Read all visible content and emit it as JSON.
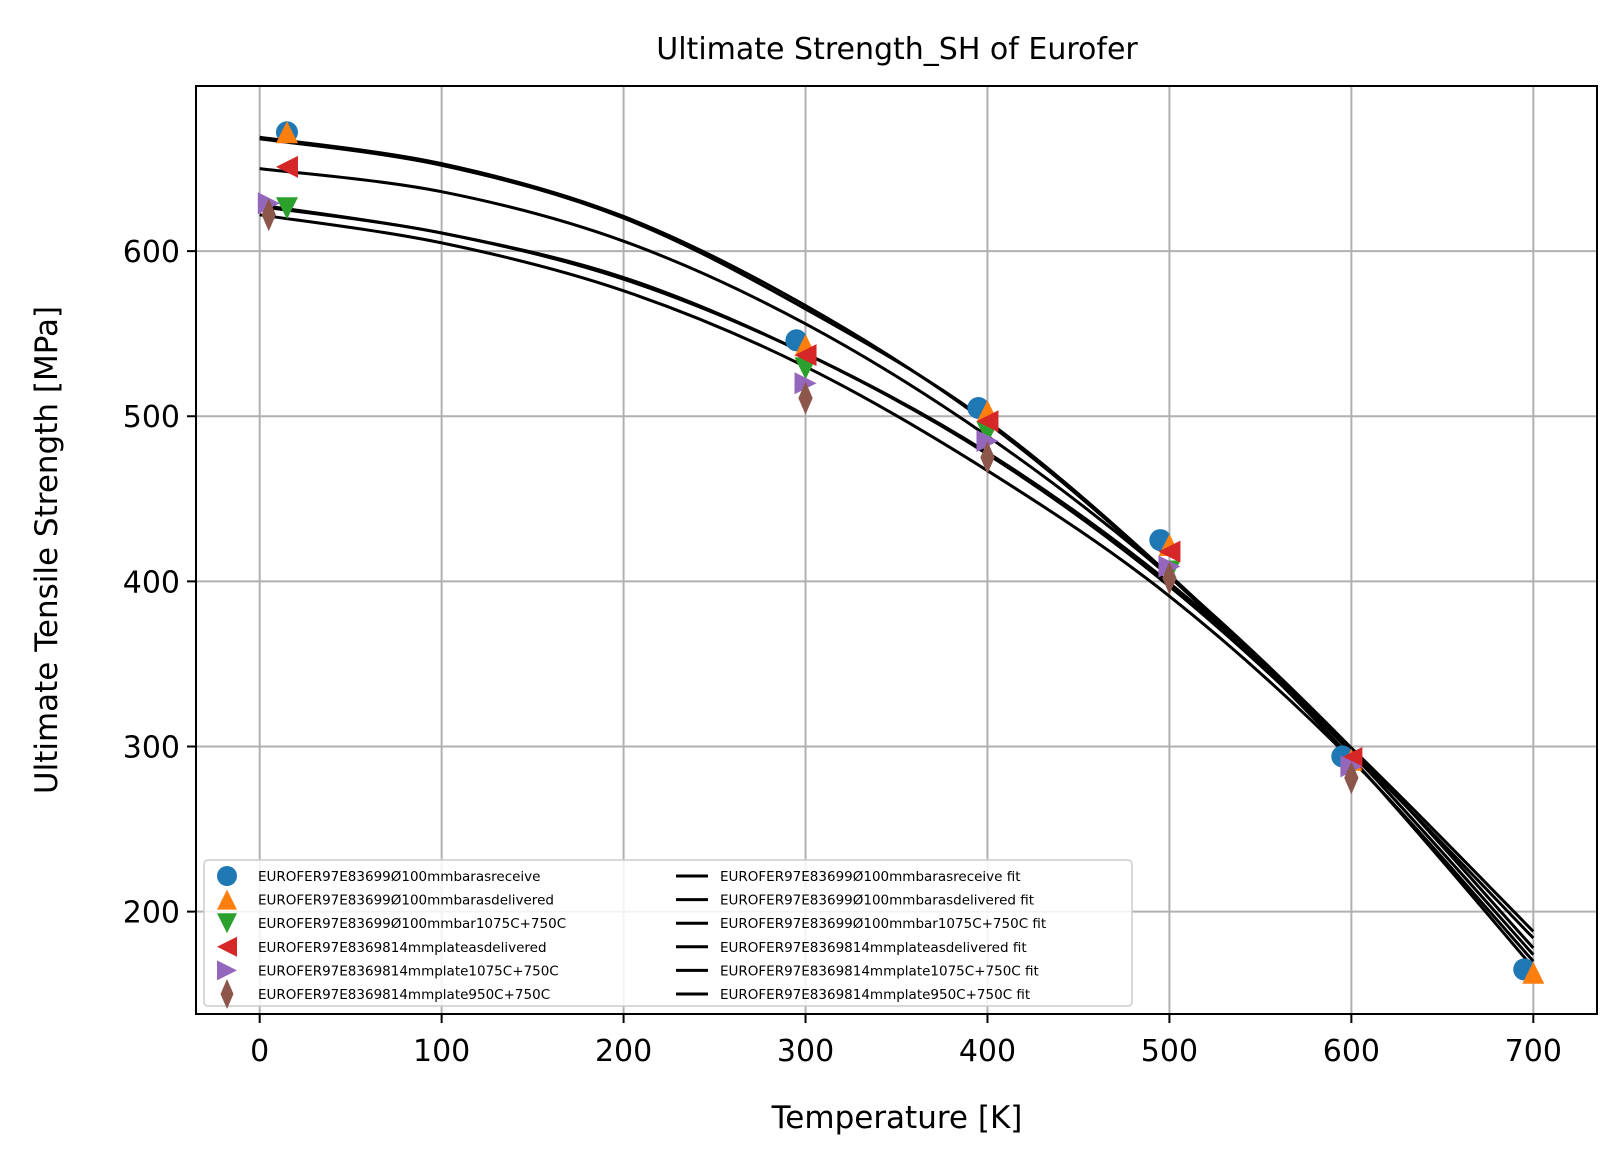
{
  "chart_data": {
    "type": "scatter",
    "title": "Ultimate Strength_SH of Eurofer",
    "xlabel": "Temperature [K]",
    "ylabel": "Ultimate Tensile Strength [MPa]",
    "xlim": [
      -35,
      735
    ],
    "ylim": [
      138,
      700
    ],
    "xticks": [
      0,
      100,
      200,
      300,
      400,
      500,
      600,
      700
    ],
    "yticks": [
      200,
      300,
      400,
      500,
      600
    ],
    "grid": true,
    "legend_position": "lower-left",
    "series": [
      {
        "name": "EUROFER97E83699Ø100mmbarasreceive",
        "marker": "circle",
        "color": "#1f77b4",
        "x": [
          15,
          295,
          395,
          495,
          595,
          695
        ],
        "y": [
          672,
          546,
          505,
          425,
          294,
          165
        ]
      },
      {
        "name": "EUROFER97E83699Ø100mmbarasdelivered",
        "marker": "triangle-up",
        "color": "#ff7f0e",
        "x": [
          15,
          300,
          400,
          500,
          600,
          700
        ],
        "y": [
          672,
          543,
          503,
          422,
          292,
          163
        ]
      },
      {
        "name": "EUROFER97E83699Ø100mmbar1075C+750C",
        "marker": "triangle-down",
        "color": "#2ca02c",
        "x": [
          15,
          300,
          400,
          500,
          600
        ],
        "y": [
          626,
          529,
          490,
          406,
          287
        ]
      },
      {
        "name": "EUROFER97E8369814mmplateasdelivered",
        "marker": "triangle-left",
        "color": "#d62728",
        "x": [
          15,
          300,
          400,
          500,
          600
        ],
        "y": [
          651,
          537,
          497,
          418,
          293
        ]
      },
      {
        "name": "EUROFER97E8369814mmplate1075C+750C",
        "marker": "triangle-right",
        "color": "#9467bd",
        "x": [
          5,
          300,
          400,
          500,
          600
        ],
        "y": [
          629,
          520,
          485,
          409,
          288
        ]
      },
      {
        "name": "EUROFER97E8369814mmplate950C+750C",
        "marker": "diamond",
        "color": "#8c564b",
        "x": [
          5,
          300,
          400,
          500,
          600
        ],
        "y": [
          622,
          511,
          475,
          402,
          281
        ]
      }
    ],
    "fits": [
      {
        "name": "EUROFER97E83699Ø100mmbarasreceive fit",
        "color": "#000000",
        "x": [
          0,
          100,
          200,
          300,
          400,
          500,
          600,
          700
        ],
        "y": [
          668,
          652,
          620,
          565,
          497,
          404,
          296,
          174
        ]
      },
      {
        "name": "EUROFER97E83699Ø100mmbarasdelivered fit",
        "color": "#000000",
        "x": [
          0,
          100,
          200,
          300,
          400,
          500,
          600,
          700
        ],
        "y": [
          669,
          653,
          621,
          567,
          496,
          403,
          293,
          166
        ]
      },
      {
        "name": "EUROFER97E83699Ø100mmbar1075C+750C fit",
        "color": "#000000",
        "x": [
          0,
          100,
          200,
          300,
          400,
          500,
          600,
          700
        ],
        "y": [
          628,
          611,
          584,
          538,
          477,
          397,
          297,
          184
        ]
      },
      {
        "name": "EUROFER97E8369814mmplateasdelivered fit",
        "color": "#000000",
        "x": [
          0,
          100,
          200,
          300,
          400,
          500,
          600,
          700
        ],
        "y": [
          650,
          636,
          606,
          556,
          488,
          403,
          299,
          178
        ]
      },
      {
        "name": "EUROFER97E8369814mmplate1075C+750C fit",
        "color": "#000000",
        "x": [
          0,
          100,
          200,
          300,
          400,
          500,
          600,
          700
        ],
        "y": [
          627,
          611,
          583,
          538,
          478,
          399,
          299,
          188
        ]
      },
      {
        "name": "EUROFER97E8369814mmplate950C+750C fit",
        "color": "#000000",
        "x": [
          0,
          100,
          200,
          300,
          400,
          500,
          600,
          700
        ],
        "y": [
          622,
          605,
          576,
          530,
          467,
          391,
          292,
          170
        ]
      }
    ]
  }
}
